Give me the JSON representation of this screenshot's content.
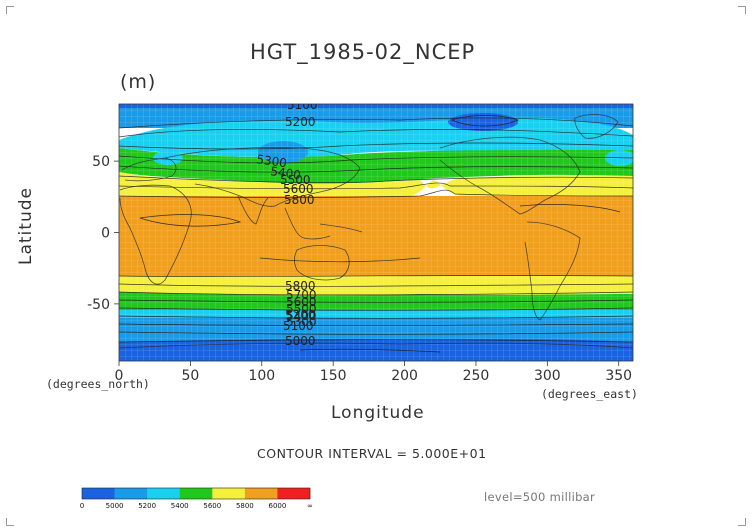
{
  "chart_data": {
    "type": "contour map",
    "title": "HGT_1985-02_NCEP",
    "units": "(m)",
    "xlabel": "Longitude",
    "ylabel": "Latitude",
    "x_unit_label": "(degrees_east)",
    "y_unit_label": "(degrees_north)",
    "xlim": [
      0,
      360
    ],
    "ylim": [
      -90,
      90
    ],
    "x_ticks": [
      0,
      50,
      100,
      150,
      200,
      250,
      300,
      350
    ],
    "y_ticks": [
      50,
      0,
      -50
    ],
    "contour_interval_text": "CONTOUR INTERVAL = 5.000E+01",
    "level_text": "level=500 millibar",
    "contour_labels": [
      "5100",
      "5200",
      "5300",
      "5400",
      "5500",
      "5600",
      "5800",
      "5800",
      "5700",
      "5600",
      "5500",
      "5400",
      "5300",
      "5200",
      "5100",
      "5000"
    ],
    "grid": true,
    "colorbar": {
      "tick_labels": [
        "0",
        "5000",
        "5200",
        "5400",
        "5600",
        "5800",
        "6000",
        "∞"
      ],
      "colors": [
        "#1a63e0",
        "#1a9be8",
        "#1ad0f0",
        "#22c71e",
        "#f5f03c",
        "#f0a01e",
        "#f02020"
      ]
    },
    "bands": [
      {
        "level": "<5000",
        "color": "#1a63e0"
      },
      {
        "level": "5000-5200",
        "color": "#1a9be8"
      },
      {
        "level": "5200-5400",
        "color": "#1ad0f0"
      },
      {
        "level": "5400-5600",
        "color": "#22c71e"
      },
      {
        "level": "5600-5800",
        "color": "#f5f03c"
      },
      {
        "level": "5800-6000",
        "color": "#f0a01e"
      }
    ]
  }
}
